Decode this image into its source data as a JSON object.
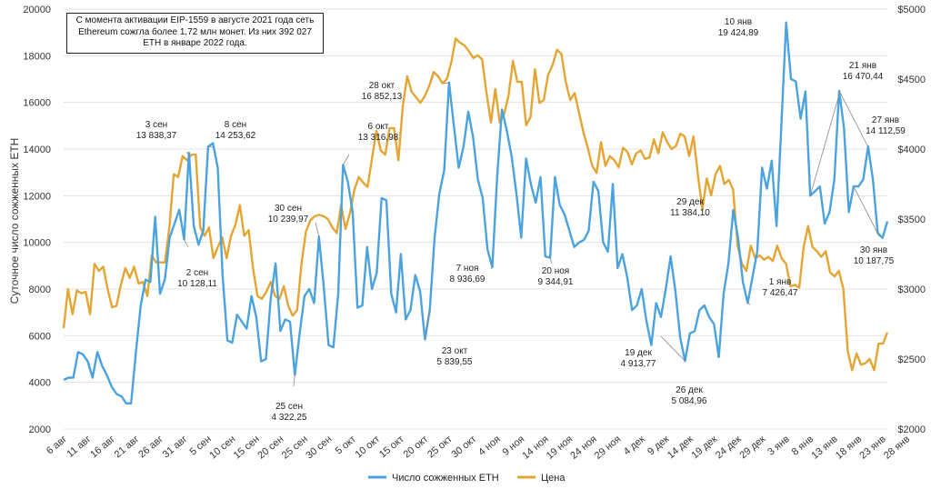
{
  "chart_data": {
    "type": "line",
    "ylabel": "Суточное число сожженных ETH",
    "y_left": {
      "min": 2000,
      "max": 20000,
      "ticks": [
        "2000",
        "4000",
        "6000",
        "8000",
        "10000",
        "12000",
        "14000",
        "16000",
        "18000",
        "20000"
      ]
    },
    "y_right": {
      "min": 2000,
      "max": 5000,
      "ticks": [
        "$2000",
        "$2500",
        "$3000",
        "$3500",
        "$4000",
        "$4500",
        "$5000"
      ]
    },
    "x_tick_labels": [
      "6 авг",
      "11 авг",
      "16 авг",
      "21 авг",
      "26 авг",
      "31 авг",
      "5 сен",
      "10 сен",
      "15 сен",
      "20 сен",
      "25 сен",
      "30 сен",
      "5 окт",
      "10 окт",
      "15 окт",
      "20 окт",
      "25 окт",
      "30 окт",
      "4 ноя",
      "9 ноя",
      "14 ноя",
      "19 ноя",
      "24 ноя",
      "29 ноя",
      "4 дек",
      "9 дек",
      "14 дек",
      "19 дек",
      "24 дек",
      "29 дек",
      "3 янв",
      "8 янв",
      "13 янв",
      "18 янв",
      "23 янв",
      "28 янв"
    ],
    "note": "С момента активации EIP-1559 в августе 2021 года сеть Ethereum сожгла более 1,72 млн монет. Из них 392 027 ETH в январе 2022 года.",
    "legend": "bottom-center",
    "series": [
      {
        "name": "Число сожженных ETH",
        "color": "#4aa3df",
        "axis": "left",
        "values": [
          4100,
          4200,
          4200,
          5300,
          5200,
          4900,
          4200,
          5300,
          4700,
          4300,
          3800,
          3500,
          3400,
          3100,
          3100,
          5300,
          7300,
          8400,
          8300,
          11100,
          7800,
          8400,
          10200,
          10800,
          11400,
          10128,
          13838,
          10700,
          9900,
          10500,
          14100,
          14254,
          13200,
          8600,
          5800,
          5700,
          6900,
          6600,
          6300,
          7700,
          6800,
          4900,
          5000,
          7600,
          9100,
          6200,
          6700,
          6600,
          4322,
          6100,
          7700,
          8000,
          7400,
          10240,
          8100,
          5600,
          5500,
          7800,
          13317,
          12600,
          11300,
          7200,
          7300,
          9800,
          8000,
          8700,
          11900,
          11800,
          7800,
          7000,
          9500,
          6700,
          7100,
          8600,
          7900,
          5840,
          7100,
          10200,
          12100,
          13100,
          16852,
          15000,
          13200,
          14100,
          15600,
          14500,
          12700,
          11900,
          9700,
          8937,
          12800,
          15700,
          14800,
          13700,
          12100,
          10200,
          13600,
          12500,
          11700,
          12800,
          9400,
          9345,
          12800,
          11600,
          11200,
          10500,
          9800,
          10000,
          10100,
          10500,
          12600,
          12200,
          10000,
          9600,
          12500,
          8900,
          9500,
          8500,
          7100,
          7300,
          8000,
          6600,
          5600,
          7400,
          6800,
          8000,
          9400,
          7900,
          5900,
          4914,
          6100,
          6200,
          7100,
          7300,
          6800,
          6500,
          5085,
          7800,
          9100,
          11384,
          10200,
          8300,
          7400,
          8500,
          9600,
          13200,
          12300,
          13500,
          10700,
          15000,
          19425,
          17000,
          16900,
          15300,
          16470,
          12000,
          12200,
          12400,
          10800,
          11300,
          12700,
          16500,
          14900,
          11300,
          12400,
          12400,
          12700,
          14113,
          12700,
          10400,
          10188,
          10900
        ]
      },
      {
        "name": "Цена",
        "color": "#e5a532",
        "axis": "right",
        "values": [
          2720,
          3000,
          2820,
          2990,
          2970,
          2980,
          2820,
          3180,
          3130,
          3160,
          3000,
          2870,
          2880,
          3030,
          3150,
          3080,
          3160,
          3040,
          3050,
          2950,
          3240,
          3190,
          3190,
          3190,
          3440,
          3820,
          3800,
          3950,
          3920,
          3960,
          3960,
          3440,
          3380,
          3440,
          3220,
          3300,
          3370,
          3220,
          3380,
          3460,
          3600,
          3380,
          3420,
          3150,
          2950,
          2930,
          2980,
          3050,
          2950,
          2930,
          3020,
          2880,
          2810,
          2850,
          3180,
          3410,
          3490,
          3520,
          3530,
          3520,
          3500,
          3440,
          3400,
          3600,
          3430,
          3540,
          3710,
          3800,
          3760,
          3730,
          3930,
          4130,
          3990,
          3960,
          4150,
          4150,
          3920,
          4310,
          4520,
          4410,
          4370,
          4330,
          4380,
          4450,
          4550,
          4520,
          4470,
          4500,
          4620,
          4790,
          4760,
          4740,
          4700,
          4650,
          4670,
          4640,
          4400,
          4190,
          4430,
          4190,
          4250,
          4380,
          4630,
          4480,
          4480,
          4170,
          4230,
          4570,
          4330,
          4350,
          4530,
          4600,
          4710,
          4680,
          4480,
          4350,
          4400,
          4260,
          4120,
          4010,
          3880,
          3830,
          4050,
          3880,
          3950,
          3920,
          3870,
          4010,
          3980,
          3890,
          3970,
          3990,
          3930,
          3940,
          4070,
          3970,
          4120,
          4050,
          4000,
          4020,
          4110,
          4090,
          3950,
          4090,
          3810,
          3570,
          3790,
          3670,
          3820,
          3880,
          3750,
          3780,
          3710,
          3310,
          3180,
          3130,
          3310,
          3220,
          3240,
          3210,
          3230,
          3200,
          3310,
          3220,
          3180,
          3020,
          3030,
          3010,
          3300,
          3450,
          3300,
          3270,
          3230,
          3270,
          3120,
          3090,
          3130,
          3000,
          2560,
          2420,
          2540,
          2460,
          2470,
          2500,
          2420,
          2610,
          2610,
          2690
        ]
      }
    ],
    "annotations": [
      {
        "label": "3 сен",
        "value": "13 838,37"
      },
      {
        "label": "2 сен",
        "value": "10 128,11"
      },
      {
        "label": "8 сен",
        "value": "14 253,62"
      },
      {
        "label": "30 сен",
        "value": "10 239,97"
      },
      {
        "label": "25 сен",
        "value": "4 322,25"
      },
      {
        "label": "6 окт",
        "value": "13 316,98"
      },
      {
        "label": "28 окт",
        "value": "16 852,13"
      },
      {
        "label": "23 окт",
        "value": "5 839,55"
      },
      {
        "label": "7 ноя",
        "value": "8 936,69"
      },
      {
        "label": "20 ноя",
        "value": "9 344,91"
      },
      {
        "label": "19 дек",
        "value": "4 913,77"
      },
      {
        "label": "26 дек",
        "value": "5 084,96"
      },
      {
        "label": "29 дек",
        "value": "11 384,10"
      },
      {
        "label": "1 янв",
        "value": "7 426,47"
      },
      {
        "label": "10 янв",
        "value": "19 424,89"
      },
      {
        "label": "21 янв",
        "value": "16 470,44"
      },
      {
        "label": "27 янв",
        "value": "14 112,59"
      },
      {
        "label": "30 янв",
        "value": "10 187,75"
      }
    ]
  }
}
